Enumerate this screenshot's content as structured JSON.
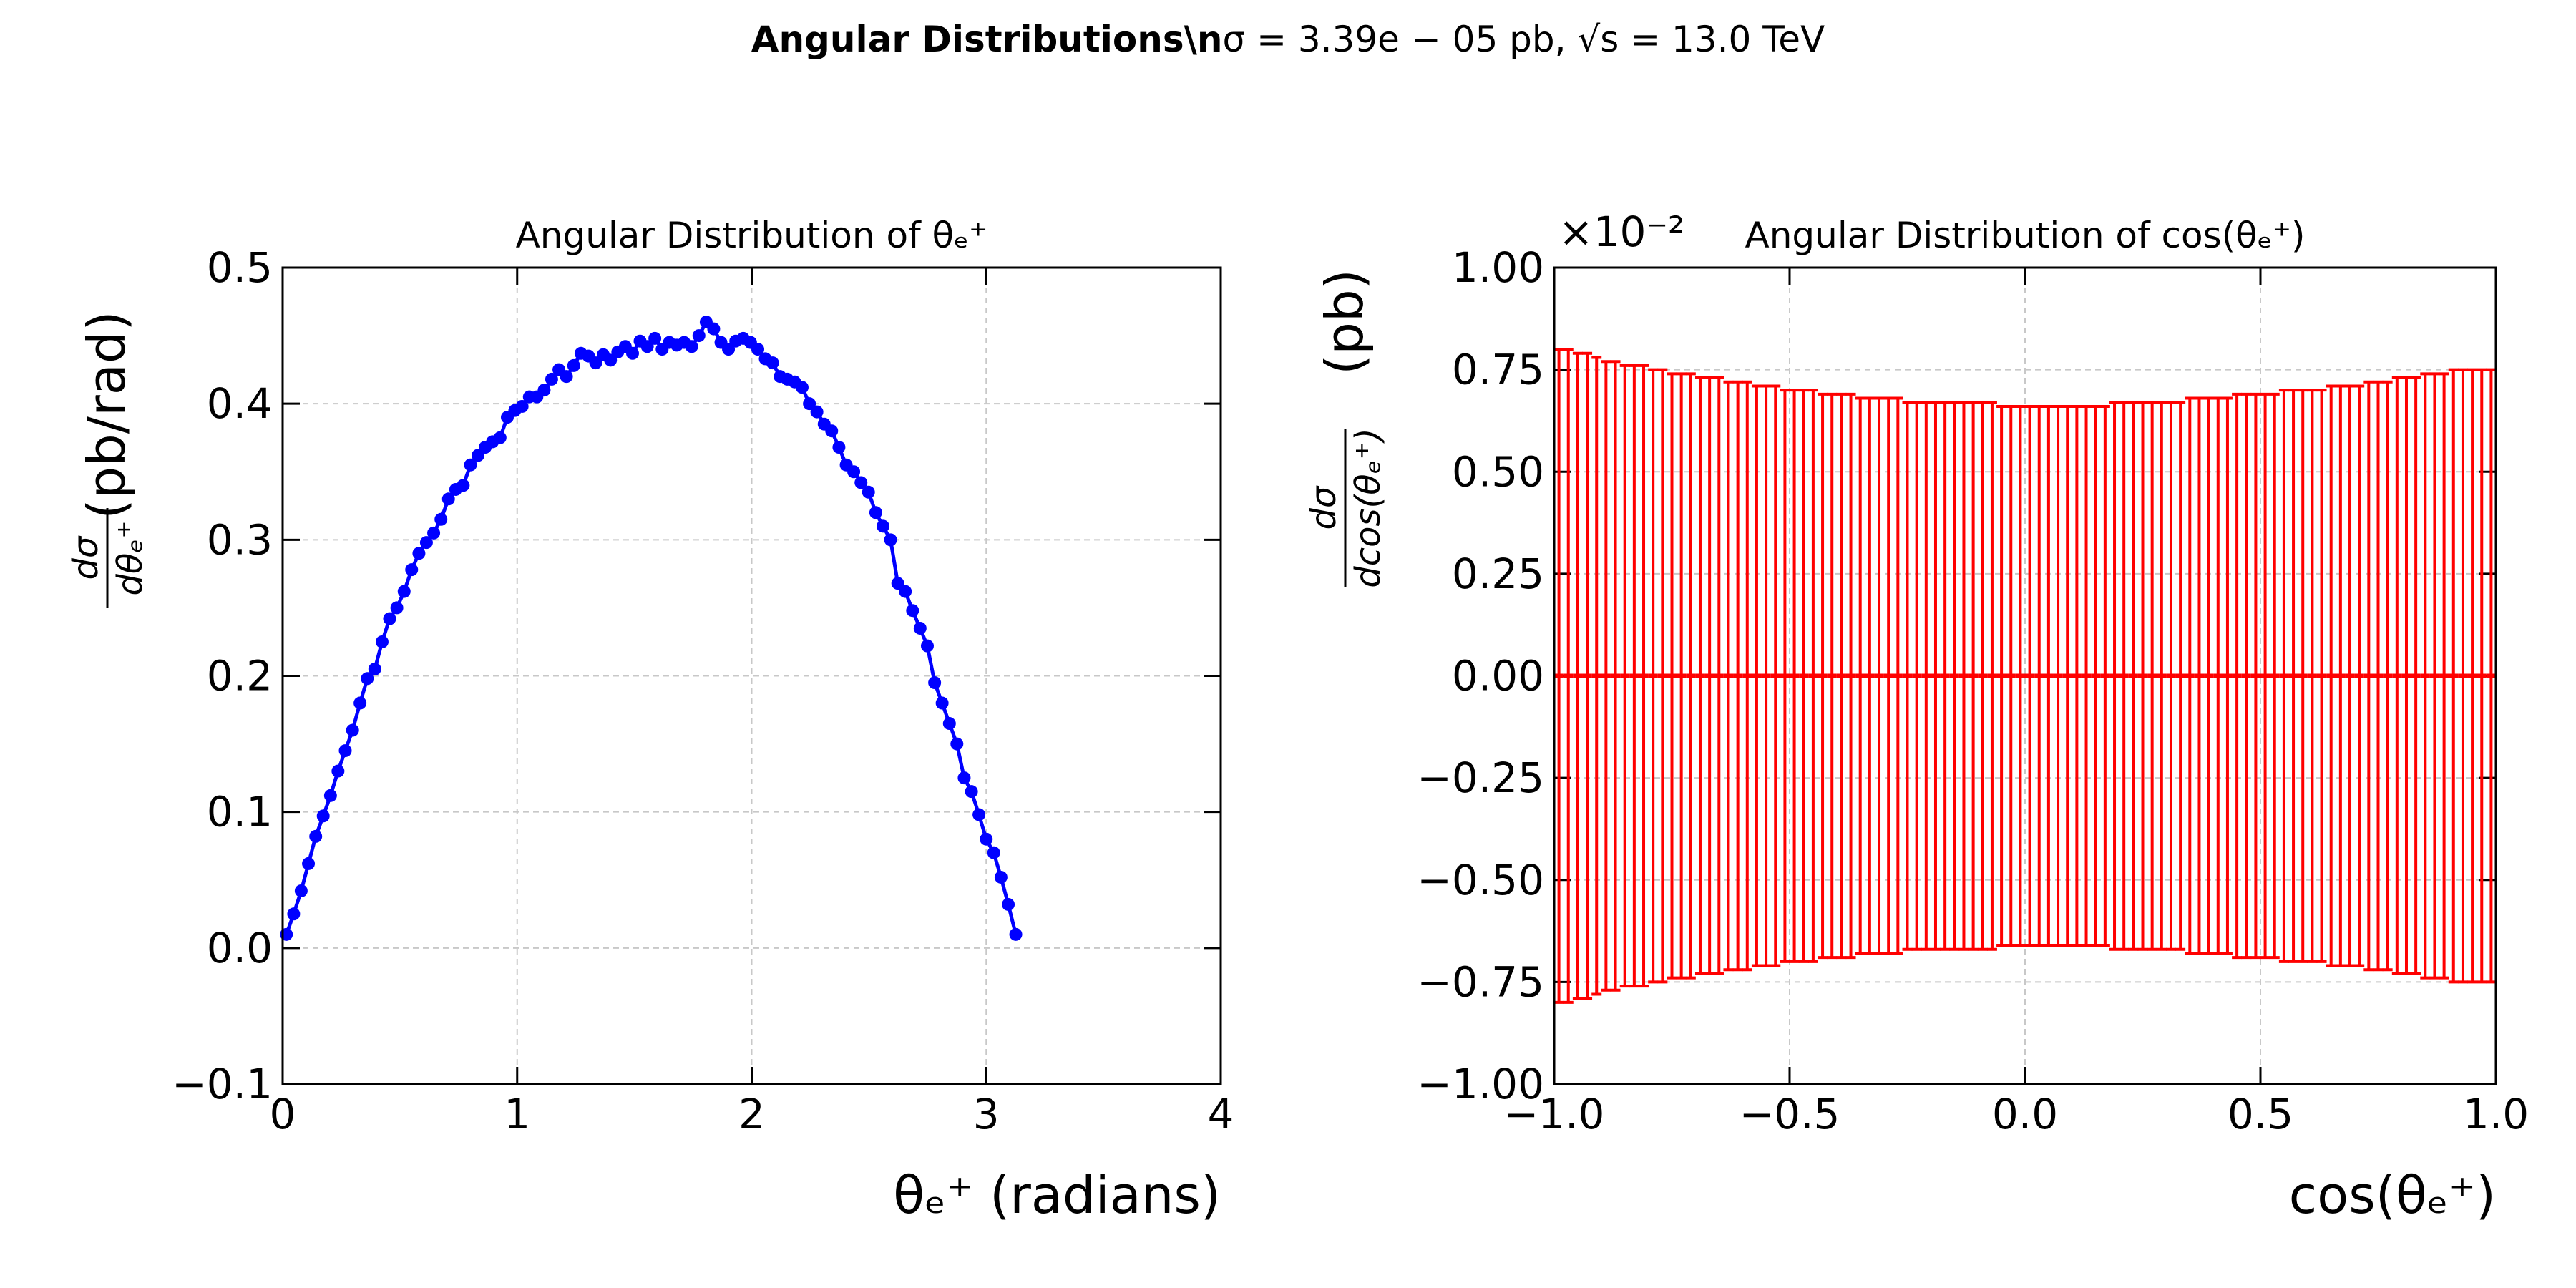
{
  "title": {
    "bold": "Angular Distributions\\n",
    "rest": "σ = 3.39e − 05 pb, √s = 13.0 TeV"
  },
  "chart_data": [
    {
      "type": "line",
      "title": "Angular Distribution of θₑ⁺",
      "xlabel": "θₑ⁺ (radians)",
      "ylabel": {
        "numerator": "dσ",
        "denominator": "dθₑ⁺",
        "unit": "(pb/rad)"
      },
      "color": "#0000ff",
      "grid": true,
      "xlim": [
        0,
        4
      ],
      "ylim": [
        -0.1,
        0.5
      ],
      "xticks": [
        0,
        1,
        2,
        3,
        4
      ],
      "yticks": [
        {
          "value": -0.1,
          "label": "−0.1"
        },
        {
          "value": 0,
          "label": "0.0"
        },
        0.1,
        0.2,
        0.3,
        0.4,
        0.5
      ],
      "x": [
        0.016,
        0.047,
        0.079,
        0.11,
        0.141,
        0.173,
        0.204,
        0.236,
        0.267,
        0.298,
        0.33,
        0.361,
        0.393,
        0.424,
        0.456,
        0.487,
        0.518,
        0.55,
        0.581,
        0.613,
        0.644,
        0.675,
        0.707,
        0.738,
        0.77,
        0.801,
        0.833,
        0.864,
        0.895,
        0.927,
        0.958,
        0.99,
        1.021,
        1.052,
        1.084,
        1.115,
        1.147,
        1.178,
        1.21,
        1.241,
        1.272,
        1.304,
        1.335,
        1.367,
        1.398,
        1.429,
        1.461,
        1.492,
        1.524,
        1.555,
        1.587,
        1.618,
        1.649,
        1.681,
        1.712,
        1.744,
        1.775,
        1.806,
        1.838,
        1.869,
        1.901,
        1.932,
        1.964,
        1.995,
        2.026,
        2.058,
        2.089,
        2.121,
        2.152,
        2.183,
        2.215,
        2.246,
        2.278,
        2.309,
        2.341,
        2.372,
        2.403,
        2.435,
        2.466,
        2.498,
        2.529,
        2.56,
        2.592,
        2.623,
        2.655,
        2.686,
        2.718,
        2.749,
        2.78,
        2.812,
        2.843,
        2.875,
        2.906,
        2.937,
        2.969,
        3.0,
        3.032,
        3.063,
        3.094,
        3.126
      ],
      "values": [
        0.01,
        0.025,
        0.042,
        0.062,
        0.082,
        0.097,
        0.112,
        0.13,
        0.145,
        0.16,
        0.18,
        0.198,
        0.205,
        0.225,
        0.242,
        0.25,
        0.262,
        0.278,
        0.29,
        0.298,
        0.305,
        0.315,
        0.33,
        0.337,
        0.34,
        0.355,
        0.362,
        0.368,
        0.372,
        0.375,
        0.39,
        0.395,
        0.398,
        0.405,
        0.405,
        0.41,
        0.418,
        0.425,
        0.42,
        0.428,
        0.437,
        0.435,
        0.43,
        0.436,
        0.432,
        0.438,
        0.442,
        0.437,
        0.446,
        0.442,
        0.448,
        0.44,
        0.445,
        0.443,
        0.445,
        0.442,
        0.45,
        0.46,
        0.455,
        0.445,
        0.44,
        0.446,
        0.448,
        0.445,
        0.44,
        0.433,
        0.43,
        0.42,
        0.418,
        0.416,
        0.412,
        0.4,
        0.394,
        0.385,
        0.38,
        0.368,
        0.355,
        0.35,
        0.342,
        0.335,
        0.32,
        0.31,
        0.3,
        0.268,
        0.262,
        0.248,
        0.235,
        0.222,
        0.195,
        0.18,
        0.165,
        0.15,
        0.125,
        0.115,
        0.098,
        0.08,
        0.07,
        0.052,
        0.032,
        0.01
      ]
    },
    {
      "type": "errorbar",
      "title": "Angular Distribution of cos(θₑ⁺)",
      "xlabel": "cos(θₑ⁺)",
      "ylabel": {
        "numerator": "dσ",
        "denominator": "dcos(θₑ⁺)",
        "unit": "(pb)"
      },
      "offset_text": "×10⁻²",
      "color": "#ff0000",
      "grid": true,
      "xlim": [
        -1,
        1
      ],
      "ylim": [
        -1,
        1
      ],
      "xticks": [
        {
          "value": -1,
          "label": "−1.0"
        },
        {
          "value": -0.5,
          "label": "−0.5"
        },
        {
          "value": 0,
          "label": "0.0"
        },
        0.5,
        {
          "value": 1,
          "label": "1.0"
        }
      ],
      "yticks": [
        {
          "value": -1,
          "label": "−1.00"
        },
        {
          "value": -0.75,
          "label": "−0.75"
        },
        {
          "value": -0.5,
          "label": "−0.50"
        },
        {
          "value": -0.25,
          "label": "−0.25"
        },
        {
          "value": 0,
          "label": "0.00"
        },
        0.25,
        {
          "value": 0.5,
          "label": "0.50"
        },
        0.75,
        {
          "value": 1,
          "label": "1.00"
        }
      ],
      "x": [
        -0.99,
        -0.97,
        -0.95,
        -0.93,
        -0.91,
        -0.89,
        -0.87,
        -0.85,
        -0.83,
        -0.81,
        -0.79,
        -0.77,
        -0.75,
        -0.73,
        -0.71,
        -0.69,
        -0.67,
        -0.65,
        -0.63,
        -0.61,
        -0.59,
        -0.57,
        -0.55,
        -0.53,
        -0.51,
        -0.49,
        -0.47,
        -0.45,
        -0.43,
        -0.41,
        -0.39,
        -0.37,
        -0.35,
        -0.33,
        -0.31,
        -0.29,
        -0.27,
        -0.25,
        -0.23,
        -0.21,
        -0.19,
        -0.17,
        -0.15,
        -0.13,
        -0.11,
        -0.09,
        -0.07,
        -0.05,
        -0.03,
        -0.01,
        0.01,
        0.03,
        0.05,
        0.07,
        0.09,
        0.11,
        0.13,
        0.15,
        0.17,
        0.19,
        0.21,
        0.23,
        0.25,
        0.27,
        0.29,
        0.31,
        0.33,
        0.35,
        0.37,
        0.39,
        0.41,
        0.43,
        0.45,
        0.47,
        0.49,
        0.51,
        0.53,
        0.55,
        0.57,
        0.59,
        0.61,
        0.63,
        0.65,
        0.67,
        0.69,
        0.71,
        0.73,
        0.75,
        0.77,
        0.79,
        0.81,
        0.83,
        0.85,
        0.87,
        0.89,
        0.91,
        0.93,
        0.95,
        0.97,
        0.99
      ],
      "values": [
        0,
        0,
        0,
        0,
        0,
        0,
        0,
        0,
        0,
        0,
        0,
        0,
        0,
        0,
        0,
        0,
        0,
        0,
        0,
        0,
        0,
        0,
        0,
        0,
        0,
        0,
        0,
        0,
        0,
        0,
        0,
        0,
        0,
        0,
        0,
        0,
        0,
        0,
        0,
        0,
        0,
        0,
        0,
        0,
        0,
        0,
        0,
        0,
        0,
        0,
        0,
        0,
        0,
        0,
        0,
        0,
        0,
        0,
        0,
        0,
        0,
        0,
        0,
        0,
        0,
        0,
        0,
        0,
        0,
        0,
        0,
        0,
        0,
        0,
        0,
        0,
        0,
        0,
        0,
        0,
        0,
        0,
        0,
        0,
        0,
        0,
        0,
        0,
        0,
        0,
        0,
        0,
        0,
        0,
        0,
        0,
        0,
        0,
        0,
        0
      ],
      "errors": [
        0.8,
        0.8,
        0.79,
        0.79,
        0.78,
        0.77,
        0.77,
        0.76,
        0.76,
        0.76,
        0.75,
        0.75,
        0.74,
        0.74,
        0.74,
        0.73,
        0.73,
        0.73,
        0.72,
        0.72,
        0.72,
        0.71,
        0.71,
        0.71,
        0.7,
        0.7,
        0.7,
        0.7,
        0.69,
        0.69,
        0.69,
        0.69,
        0.68,
        0.68,
        0.68,
        0.68,
        0.68,
        0.67,
        0.67,
        0.67,
        0.67,
        0.67,
        0.67,
        0.67,
        0.67,
        0.67,
        0.67,
        0.66,
        0.66,
        0.66,
        0.66,
        0.66,
        0.66,
        0.66,
        0.66,
        0.66,
        0.66,
        0.66,
        0.66,
        0.67,
        0.67,
        0.67,
        0.67,
        0.67,
        0.67,
        0.67,
        0.67,
        0.68,
        0.68,
        0.68,
        0.68,
        0.68,
        0.69,
        0.69,
        0.69,
        0.69,
        0.69,
        0.7,
        0.7,
        0.7,
        0.7,
        0.7,
        0.71,
        0.71,
        0.71,
        0.71,
        0.72,
        0.72,
        0.72,
        0.73,
        0.73,
        0.73,
        0.74,
        0.74,
        0.74,
        0.75,
        0.75,
        0.75,
        0.75,
        0.75
      ]
    }
  ]
}
